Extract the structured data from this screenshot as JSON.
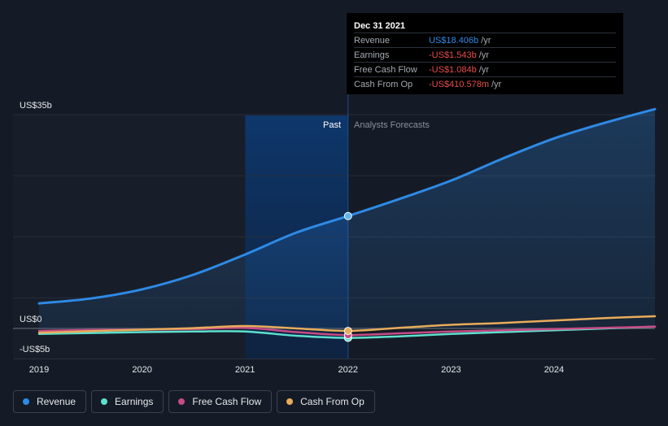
{
  "tooltip": {
    "date": "Dec 31 2021",
    "rows": [
      {
        "label": "Revenue",
        "value": "US$18.406b",
        "unit": "/yr",
        "color": "#2e8ae6"
      },
      {
        "label": "Earnings",
        "value": "-US$1.543b",
        "unit": "/yr",
        "color": "#e84b4b"
      },
      {
        "label": "Free Cash Flow",
        "value": "-US$1.084b",
        "unit": "/yr",
        "color": "#e84b4b"
      },
      {
        "label": "Cash From Op",
        "value": "-US$410.578m",
        "unit": "/yr",
        "color": "#e84b4b"
      }
    ]
  },
  "legend": [
    {
      "label": "Revenue",
      "color": "#2e8ae6"
    },
    {
      "label": "Earnings",
      "color": "#5ee0cf"
    },
    {
      "label": "Free Cash Flow",
      "color": "#c74b86"
    },
    {
      "label": "Cash From Op",
      "color": "#e8ac5a"
    }
  ],
  "chart_data": {
    "type": "line",
    "y_labels": {
      "top": "US$35b",
      "zero": "US$0",
      "bottom": "-US$5b"
    },
    "ylim": [
      -5,
      35
    ],
    "xlim": [
      2019.0,
      2024.98
    ],
    "x_ticks": [
      "2019",
      "2020",
      "2021",
      "2022",
      "2023",
      "2024"
    ],
    "x_tick_values": [
      2019,
      2020,
      2021,
      2022,
      2023,
      2024
    ],
    "past_label": "Past",
    "forecast_label": "Analysts Forecasts",
    "divider_x": 2022.0,
    "past_band_start": 2021.0,
    "grid": true,
    "gridlines": [
      35,
      25,
      15,
      5,
      0
    ],
    "series": [
      {
        "name": "Revenue",
        "color": "#2e8ae6",
        "area": true,
        "points": [
          [
            2019.0,
            4.1
          ],
          [
            2019.5,
            4.9
          ],
          [
            2020.0,
            6.4
          ],
          [
            2020.5,
            8.8
          ],
          [
            2021.0,
            12.1
          ],
          [
            2021.5,
            15.7
          ],
          [
            2022.0,
            18.4
          ],
          [
            2022.5,
            21.2
          ],
          [
            2023.0,
            24.2
          ],
          [
            2023.5,
            27.8
          ],
          [
            2024.0,
            31.1
          ],
          [
            2024.5,
            33.7
          ],
          [
            2024.98,
            35.9
          ]
        ]
      },
      {
        "name": "Earnings",
        "color": "#5ee0cf",
        "points": [
          [
            2019.0,
            -0.9
          ],
          [
            2019.5,
            -0.75
          ],
          [
            2020.0,
            -0.6
          ],
          [
            2020.5,
            -0.5
          ],
          [
            2021.0,
            -0.5
          ],
          [
            2021.5,
            -1.2
          ],
          [
            2022.0,
            -1.54
          ],
          [
            2022.5,
            -1.3
          ],
          [
            2023.0,
            -0.9
          ],
          [
            2023.5,
            -0.6
          ],
          [
            2024.0,
            -0.3
          ],
          [
            2024.5,
            0.0
          ],
          [
            2024.98,
            0.3
          ]
        ]
      },
      {
        "name": "Free Cash Flow",
        "color": "#c74b86",
        "points": [
          [
            2019.0,
            -0.4
          ],
          [
            2019.5,
            -0.25
          ],
          [
            2020.0,
            -0.2
          ],
          [
            2020.5,
            -0.1
          ],
          [
            2021.0,
            0.1
          ],
          [
            2021.5,
            -0.6
          ],
          [
            2022.0,
            -1.08
          ],
          [
            2022.5,
            -0.8
          ],
          [
            2023.0,
            -0.5
          ],
          [
            2023.5,
            -0.3
          ],
          [
            2024.0,
            -0.1
          ],
          [
            2024.5,
            0.1
          ],
          [
            2024.98,
            0.3
          ]
        ]
      },
      {
        "name": "Cash From Op",
        "color": "#e8ac5a",
        "points": [
          [
            2019.0,
            -0.7
          ],
          [
            2019.5,
            -0.45
          ],
          [
            2020.0,
            -0.2
          ],
          [
            2020.5,
            0.05
          ],
          [
            2021.0,
            0.4
          ],
          [
            2021.5,
            0.0
          ],
          [
            2022.0,
            -0.41
          ],
          [
            2022.5,
            0.1
          ],
          [
            2023.0,
            0.6
          ],
          [
            2023.5,
            0.9
          ],
          [
            2024.0,
            1.3
          ],
          [
            2024.5,
            1.7
          ],
          [
            2024.98,
            2.0
          ]
        ]
      }
    ],
    "highlight_points": [
      {
        "series": "Revenue",
        "x": 2022.0,
        "y": 18.4,
        "fill": "#5fb3f0"
      },
      {
        "series": "Earnings",
        "x": 2022.0,
        "y": -1.54,
        "fill": "#5ee0cf"
      },
      {
        "series": "Free Cash Flow",
        "x": 2022.0,
        "y": -1.08,
        "fill": "#c74b86"
      },
      {
        "series": "Cash From Op",
        "x": 2022.0,
        "y": -0.41,
        "fill": "#e8ac5a"
      }
    ]
  }
}
